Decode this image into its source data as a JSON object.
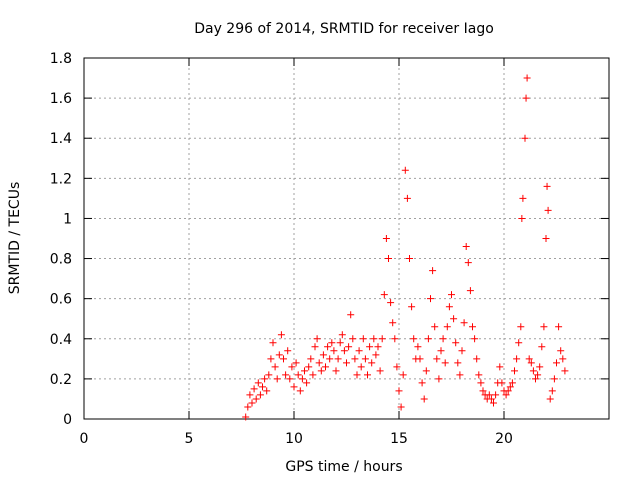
{
  "chart_data": {
    "type": "scatter",
    "title": "Day 296 of 2014, SRMTID for receiver Iago",
    "xlabel": "GPS time / hours",
    "ylabel": "SRMTID / TECUs",
    "xlim": [
      0,
      25
    ],
    "ylim": [
      0,
      1.8
    ],
    "xticks": [
      0,
      5,
      10,
      15,
      20
    ],
    "xtick_labels": [
      "0",
      "5",
      "10",
      "15",
      "20"
    ],
    "yticks": [
      0,
      0.2,
      0.4,
      0.6,
      0.8,
      1.0,
      1.2,
      1.4,
      1.6,
      1.8
    ],
    "ytick_labels": [
      "0",
      "0.2",
      "0.4",
      "0.6",
      "0.8",
      "1",
      "1.2",
      "1.4",
      "1.6",
      "1.8"
    ],
    "grid": true,
    "marker": "+",
    "marker_color": "#ff0000",
    "series": [
      {
        "name": "SRMTID",
        "points": [
          [
            7.7,
            0.01
          ],
          [
            7.8,
            0.06
          ],
          [
            7.9,
            0.12
          ],
          [
            8.0,
            0.08
          ],
          [
            8.1,
            0.15
          ],
          [
            8.2,
            0.1
          ],
          [
            8.3,
            0.18
          ],
          [
            8.4,
            0.12
          ],
          [
            8.5,
            0.16
          ],
          [
            8.6,
            0.2
          ],
          [
            8.7,
            0.14
          ],
          [
            8.8,
            0.22
          ],
          [
            8.9,
            0.3
          ],
          [
            9.0,
            0.38
          ],
          [
            9.1,
            0.26
          ],
          [
            9.2,
            0.2
          ],
          [
            9.3,
            0.32
          ],
          [
            9.4,
            0.42
          ],
          [
            9.5,
            0.3
          ],
          [
            9.6,
            0.22
          ],
          [
            9.7,
            0.34
          ],
          [
            9.8,
            0.2
          ],
          [
            9.9,
            0.26
          ],
          [
            10.0,
            0.16
          ],
          [
            10.1,
            0.28
          ],
          [
            10.2,
            0.22
          ],
          [
            10.3,
            0.14
          ],
          [
            10.4,
            0.2
          ],
          [
            10.5,
            0.24
          ],
          [
            10.6,
            0.18
          ],
          [
            10.7,
            0.26
          ],
          [
            10.8,
            0.3
          ],
          [
            10.9,
            0.22
          ],
          [
            11.0,
            0.36
          ],
          [
            11.1,
            0.4
          ],
          [
            11.2,
            0.28
          ],
          [
            11.3,
            0.24
          ],
          [
            11.4,
            0.32
          ],
          [
            11.5,
            0.26
          ],
          [
            11.6,
            0.36
          ],
          [
            11.7,
            0.3
          ],
          [
            11.8,
            0.38
          ],
          [
            11.9,
            0.34
          ],
          [
            12.0,
            0.24
          ],
          [
            12.1,
            0.3
          ],
          [
            12.2,
            0.38
          ],
          [
            12.3,
            0.42
          ],
          [
            12.4,
            0.34
          ],
          [
            12.5,
            0.28
          ],
          [
            12.6,
            0.36
          ],
          [
            12.7,
            0.52
          ],
          [
            12.8,
            0.4
          ],
          [
            12.9,
            0.3
          ],
          [
            13.0,
            0.22
          ],
          [
            13.1,
            0.34
          ],
          [
            13.2,
            0.26
          ],
          [
            13.3,
            0.4
          ],
          [
            13.4,
            0.3
          ],
          [
            13.5,
            0.22
          ],
          [
            13.6,
            0.36
          ],
          [
            13.7,
            0.28
          ],
          [
            13.8,
            0.4
          ],
          [
            13.9,
            0.32
          ],
          [
            14.0,
            0.36
          ],
          [
            14.1,
            0.24
          ],
          [
            14.2,
            0.4
          ],
          [
            14.3,
            0.62
          ],
          [
            14.4,
            0.9
          ],
          [
            14.5,
            0.8
          ],
          [
            14.6,
            0.58
          ],
          [
            14.7,
            0.48
          ],
          [
            14.8,
            0.4
          ],
          [
            14.9,
            0.26
          ],
          [
            15.0,
            0.14
          ],
          [
            15.1,
            0.06
          ],
          [
            15.2,
            0.22
          ],
          [
            15.3,
            1.24
          ],
          [
            15.4,
            1.1
          ],
          [
            15.5,
            0.8
          ],
          [
            15.6,
            0.56
          ],
          [
            15.7,
            0.4
          ],
          [
            15.8,
            0.3
          ],
          [
            15.9,
            0.36
          ],
          [
            16.0,
            0.3
          ],
          [
            16.1,
            0.18
          ],
          [
            16.2,
            0.1
          ],
          [
            16.3,
            0.24
          ],
          [
            16.4,
            0.4
          ],
          [
            16.5,
            0.6
          ],
          [
            16.6,
            0.74
          ],
          [
            16.7,
            0.46
          ],
          [
            16.8,
            0.3
          ],
          [
            16.9,
            0.2
          ],
          [
            17.0,
            0.34
          ],
          [
            17.1,
            0.4
          ],
          [
            17.2,
            0.28
          ],
          [
            17.3,
            0.46
          ],
          [
            17.4,
            0.56
          ],
          [
            17.5,
            0.62
          ],
          [
            17.6,
            0.5
          ],
          [
            17.7,
            0.38
          ],
          [
            17.8,
            0.28
          ],
          [
            17.9,
            0.22
          ],
          [
            18.0,
            0.34
          ],
          [
            18.1,
            0.48
          ],
          [
            18.2,
            0.86
          ],
          [
            18.3,
            0.78
          ],
          [
            18.4,
            0.64
          ],
          [
            18.5,
            0.46
          ],
          [
            18.6,
            0.4
          ],
          [
            18.7,
            0.3
          ],
          [
            18.8,
            0.22
          ],
          [
            18.9,
            0.18
          ],
          [
            19.0,
            0.14
          ],
          [
            19.1,
            0.12
          ],
          [
            19.2,
            0.1
          ],
          [
            19.3,
            0.12
          ],
          [
            19.4,
            0.1
          ],
          [
            19.5,
            0.08
          ],
          [
            19.6,
            0.12
          ],
          [
            19.7,
            0.18
          ],
          [
            19.8,
            0.26
          ],
          [
            19.9,
            0.18
          ],
          [
            20.0,
            0.14
          ],
          [
            20.1,
            0.12
          ],
          [
            20.2,
            0.14
          ],
          [
            20.3,
            0.16
          ],
          [
            20.4,
            0.18
          ],
          [
            20.5,
            0.24
          ],
          [
            20.6,
            0.3
          ],
          [
            20.7,
            0.38
          ],
          [
            20.8,
            0.46
          ],
          [
            20.85,
            1.0
          ],
          [
            20.9,
            1.1
          ],
          [
            21.0,
            1.4
          ],
          [
            21.05,
            1.6
          ],
          [
            21.1,
            1.7
          ],
          [
            21.2,
            0.3
          ],
          [
            21.3,
            0.28
          ],
          [
            21.4,
            0.24
          ],
          [
            21.5,
            0.2
          ],
          [
            21.6,
            0.22
          ],
          [
            21.7,
            0.26
          ],
          [
            21.8,
            0.36
          ],
          [
            21.9,
            0.46
          ],
          [
            22.0,
            0.9
          ],
          [
            22.05,
            1.16
          ],
          [
            22.1,
            1.04
          ],
          [
            22.2,
            0.1
          ],
          [
            22.3,
            0.14
          ],
          [
            22.4,
            0.2
          ],
          [
            22.5,
            0.28
          ],
          [
            22.6,
            0.46
          ],
          [
            22.7,
            0.34
          ],
          [
            22.8,
            0.3
          ],
          [
            22.9,
            0.24
          ]
        ]
      }
    ]
  }
}
